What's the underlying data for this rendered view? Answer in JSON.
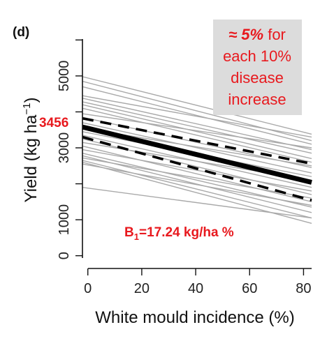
{
  "chart_data": {
    "type": "line",
    "panel_label": "(d)",
    "xlabel": "White mould incidence (%)",
    "ylabel_main": "Yield (kg ha",
    "ylabel_sup": "−1",
    "ylabel_close": ")",
    "xlim": [
      -2,
      83
    ],
    "ylim": [
      -200,
      6200
    ],
    "x_ticks": [
      0,
      20,
      40,
      60,
      80
    ],
    "x_tick_labels": [
      "0",
      "20",
      "40",
      "60",
      "80"
    ],
    "y_ticks": [
      0,
      1000,
      2000,
      3000,
      4000,
      5000,
      6000
    ],
    "y_tick_labels": [
      "0",
      "1000",
      "3000",
      "5000"
    ],
    "y_tick_label_values": [
      0,
      1000,
      3000,
      5000
    ],
    "grand_mean_line": {
      "x": [
        -2,
        83
      ],
      "y": [
        3580,
        2040
      ]
    },
    "confidence_band_upper": {
      "x": [
        -2,
        83
      ],
      "y": [
        3820,
        2560
      ]
    },
    "confidence_band_lower": {
      "x": [
        -2,
        83
      ],
      "y": [
        3300,
        1540
      ]
    },
    "study_lines": [
      {
        "x": [
          -2,
          83
        ],
        "y": [
          4980,
          3380
        ]
      },
      {
        "x": [
          -2,
          83
        ],
        "y": [
          4850,
          3200
        ]
      },
      {
        "x": [
          -2,
          83
        ],
        "y": [
          4700,
          3100
        ]
      },
      {
        "x": [
          -2,
          83
        ],
        "y": [
          4450,
          3300
        ]
      },
      {
        "x": [
          -2,
          83
        ],
        "y": [
          4380,
          2950
        ]
      },
      {
        "x": [
          -2,
          83
        ],
        "y": [
          4280,
          2850
        ]
      },
      {
        "x": [
          -2,
          83
        ],
        "y": [
          4200,
          2700
        ]
      },
      {
        "x": [
          -2,
          83
        ],
        "y": [
          4100,
          2600
        ]
      },
      {
        "x": [
          -2,
          83
        ],
        "y": [
          3950,
          3000
        ]
      },
      {
        "x": [
          -2,
          83
        ],
        "y": [
          3850,
          2450
        ]
      },
      {
        "x": [
          -2,
          83
        ],
        "y": [
          3700,
          2300
        ]
      },
      {
        "x": [
          -2,
          83
        ],
        "y": [
          3550,
          2500
        ]
      },
      {
        "x": [
          -2,
          83
        ],
        "y": [
          3450,
          2200
        ]
      },
      {
        "x": [
          -2,
          83
        ],
        "y": [
          3350,
          1900
        ]
      },
      {
        "x": [
          -2,
          83
        ],
        "y": [
          3250,
          1700
        ]
      },
      {
        "x": [
          -2,
          83
        ],
        "y": [
          3150,
          2100
        ]
      },
      {
        "x": [
          -2,
          83
        ],
        "y": [
          3050,
          1500
        ]
      },
      {
        "x": [
          -2,
          83
        ],
        "y": [
          2950,
          1800
        ]
      },
      {
        "x": [
          -2,
          83
        ],
        "y": [
          2850,
          1350
        ]
      },
      {
        "x": [
          -2,
          83
        ],
        "y": [
          2780,
          1200
        ]
      },
      {
        "x": [
          -2,
          83
        ],
        "y": [
          2720,
          1600
        ]
      },
      {
        "x": [
          -2,
          83
        ],
        "y": [
          2650,
          1050
        ]
      },
      {
        "x": [
          -2,
          83
        ],
        "y": [
          2600,
          900
        ]
      },
      {
        "x": [
          -2,
          83
        ],
        "y": [
          2550,
          1400
        ]
      },
      {
        "x": [
          -2,
          83
        ],
        "y": [
          1900,
          1050
        ]
      }
    ],
    "annotations": {
      "intercept_label": "3456",
      "slope_label_prefix": "B",
      "slope_label_sub": "1",
      "slope_label_suffix": "=17.24 kg/ha %",
      "box_line1_bold": "≈ 5%",
      "box_line1_rest": " for",
      "box_line2": "each 10%",
      "box_line3": "disease",
      "box_line4": "increase"
    },
    "colors": {
      "study_line": "#a9a9a9",
      "mean_line": "#000000",
      "annotation": "#e8191e",
      "box_fill": "#dcdcdc"
    }
  }
}
